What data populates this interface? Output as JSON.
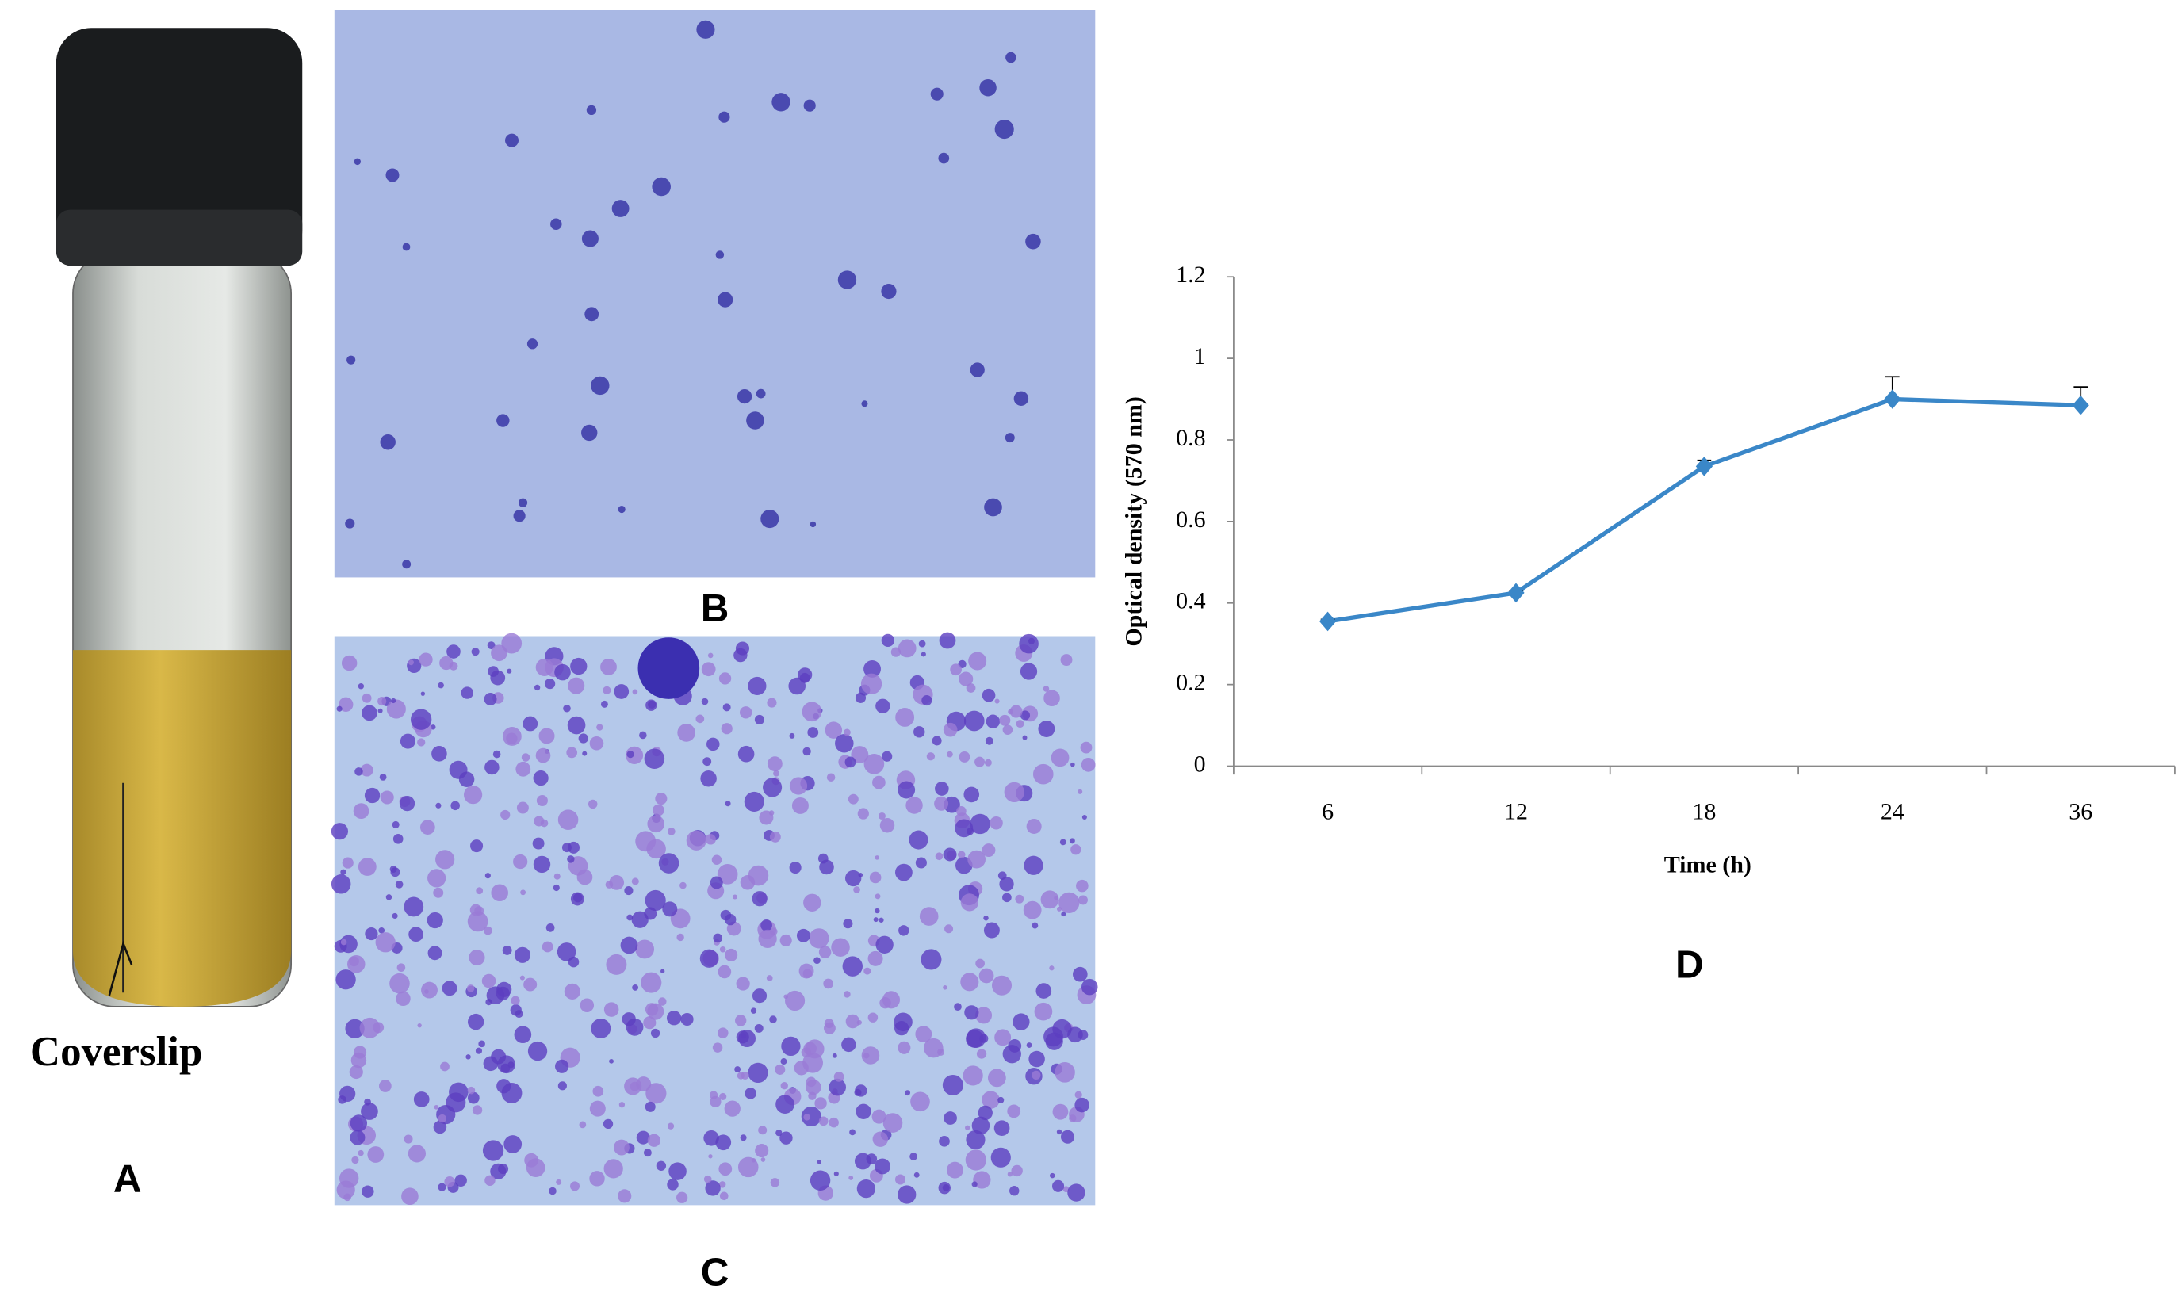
{
  "panels": {
    "a": "A",
    "b": "B",
    "c": "C",
    "d": "D",
    "coverslip": "Coverslip"
  },
  "chart_data": {
    "type": "line",
    "x_label": "Time (h)",
    "y_label": "Optical density (570 nm)",
    "categories": [
      "6",
      "12",
      "18",
      "24",
      "36"
    ],
    "series": [
      {
        "name": "Optical density",
        "color": "#3a87c8",
        "values": [
          0.355,
          0.425,
          0.735,
          0.9,
          0.885
        ],
        "errors": [
          0.005,
          0.005,
          0.015,
          0.055,
          0.045
        ]
      }
    ],
    "ylim": [
      0,
      1.2
    ],
    "yticks": [
      0,
      0.2,
      0.4,
      0.6,
      0.8,
      1,
      1.2
    ]
  }
}
